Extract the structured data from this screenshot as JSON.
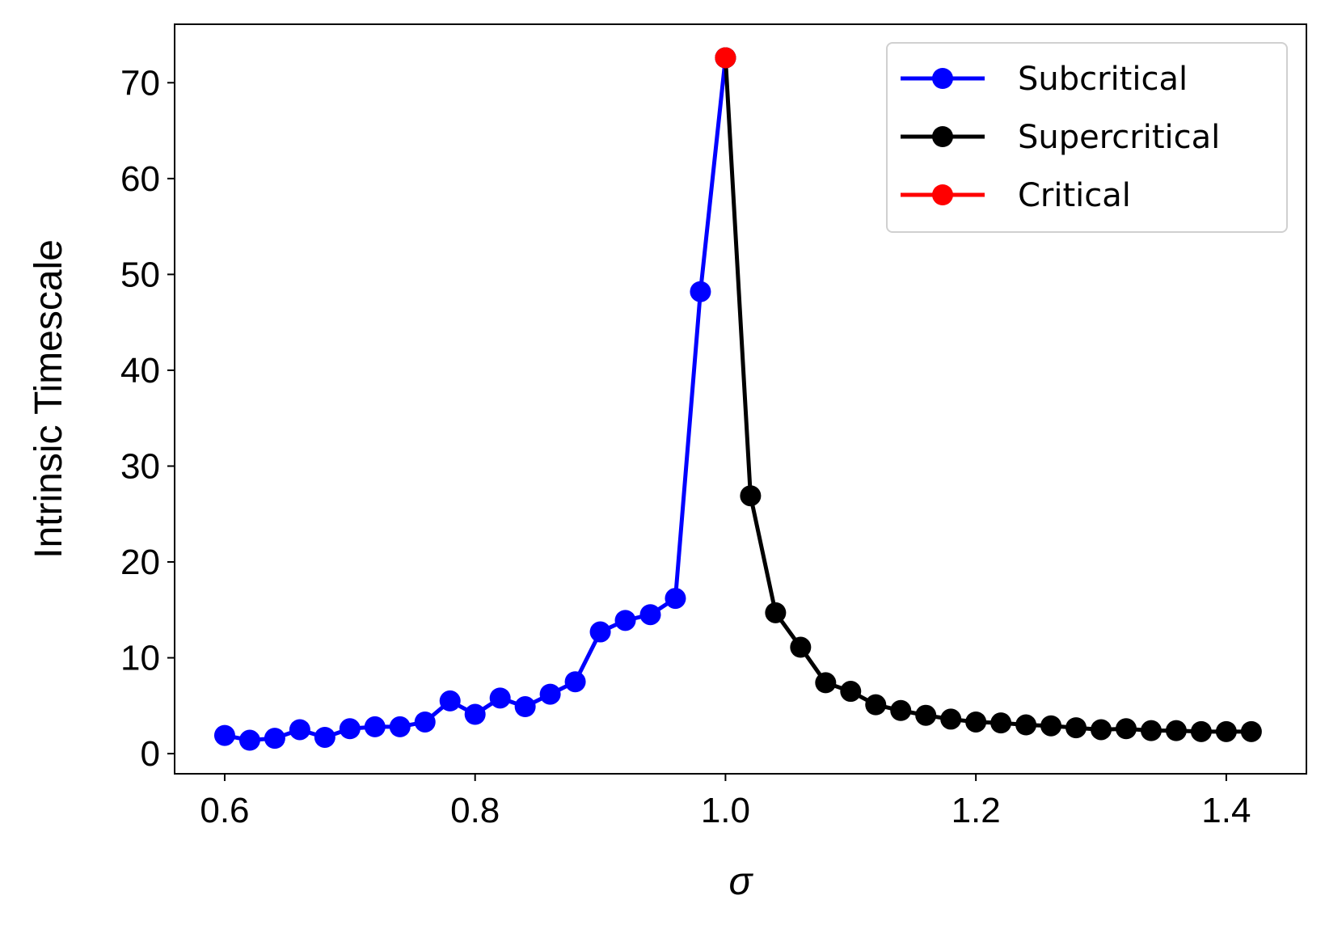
{
  "chart_data": {
    "type": "line",
    "title": "",
    "xlabel": "σ",
    "ylabel": "Intrinsic Timescale",
    "xlim": [
      0.56,
      1.464
    ],
    "ylim": [
      -2.1,
      76.1
    ],
    "xticks": [
      0.6,
      0.8,
      1.0,
      1.2,
      1.4
    ],
    "xtick_labels": [
      "0.6",
      "0.8",
      "1.0",
      "1.2",
      "1.4"
    ],
    "yticks": [
      0,
      10,
      20,
      30,
      40,
      50,
      60,
      70
    ],
    "ytick_labels": [
      "0",
      "10",
      "20",
      "30",
      "40",
      "50",
      "60",
      "70"
    ],
    "grid": false,
    "legend_position": "top-right",
    "series": [
      {
        "name": "Subcritical",
        "color": "#0000ff",
        "x": [
          0.6,
          0.62,
          0.64,
          0.66,
          0.68,
          0.7,
          0.72,
          0.74,
          0.76,
          0.78,
          0.8,
          0.82,
          0.84,
          0.86,
          0.88,
          0.9,
          0.92,
          0.94,
          0.96,
          0.98,
          1.0
        ],
        "y": [
          1.9,
          1.4,
          1.6,
          2.5,
          1.7,
          2.6,
          2.8,
          2.8,
          3.3,
          5.5,
          4.1,
          5.8,
          4.9,
          6.2,
          7.5,
          12.7,
          13.9,
          14.5,
          16.2,
          48.2,
          72.6
        ]
      },
      {
        "name": "Supercritical",
        "color": "#000000",
        "x": [
          1.0,
          1.02,
          1.04,
          1.06,
          1.08,
          1.1,
          1.12,
          1.14,
          1.16,
          1.18,
          1.2,
          1.22,
          1.24,
          1.26,
          1.28,
          1.3,
          1.32,
          1.34,
          1.36,
          1.38,
          1.4,
          1.42
        ],
        "y": [
          72.6,
          26.9,
          14.7,
          11.1,
          7.4,
          6.5,
          5.1,
          4.5,
          4.0,
          3.6,
          3.3,
          3.2,
          3.0,
          2.9,
          2.7,
          2.5,
          2.6,
          2.4,
          2.4,
          2.3,
          2.3,
          2.3
        ]
      },
      {
        "name": "Critical",
        "color": "#ff0000",
        "x": [
          1.0
        ],
        "y": [
          72.6
        ]
      }
    ]
  }
}
